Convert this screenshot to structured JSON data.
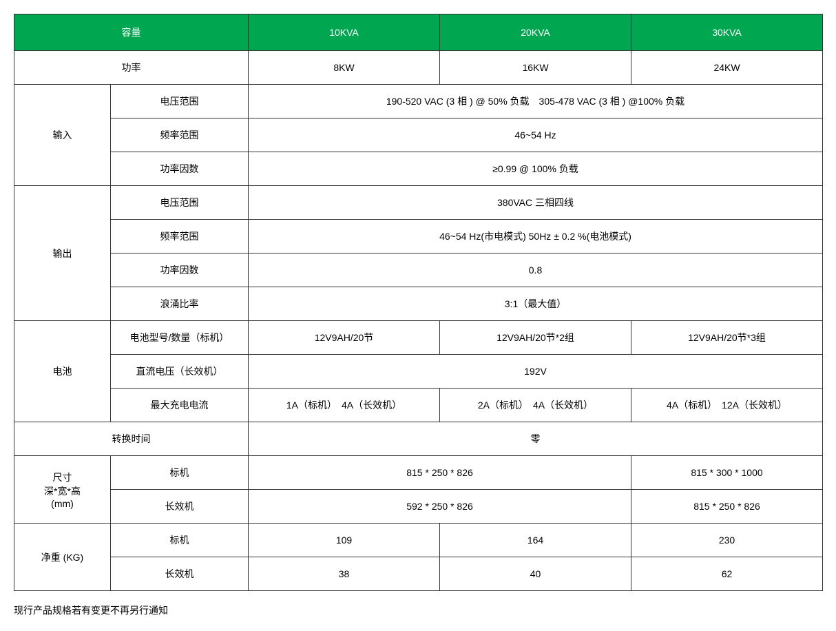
{
  "table": {
    "header_bg": "#00a650",
    "header_fg": "#ffffff",
    "border_color": "#333333",
    "text_color": "#000000",
    "columns": {
      "capacity_header": "容量",
      "model1": "10KVA",
      "model2": "20KVA",
      "model3": "30KVA"
    },
    "power": {
      "label": "功率",
      "v1": "8KW",
      "v2": "16KW",
      "v3": "24KW"
    },
    "input": {
      "label": "输入",
      "voltage_range_label": "电压范围",
      "voltage_range_value": "190-520 VAC (3 相 ) @ 50% 负载　305-478 VAC (3 相 ) @100% 负载",
      "freq_range_label": "频率范围",
      "freq_range_value": "46~54 Hz",
      "power_factor_label": "功率因数",
      "power_factor_value": "≥0.99 @ 100% 负载"
    },
    "output": {
      "label": "输出",
      "voltage_range_label": "电压范围",
      "voltage_range_value": "380VAC 三相四线",
      "freq_range_label": "频率范围",
      "freq_range_value": "46~54 Hz(市电模式)  50Hz ± 0.2 %(电池模式)",
      "power_factor_label": "功率因数",
      "power_factor_value": "0.8",
      "surge_ratio_label": "浪涌比率",
      "surge_ratio_value": "3:1（最大值）"
    },
    "battery": {
      "label": "电池",
      "model_qty_label": "电池型号/数量（标机）",
      "model_qty_v1": "12V9AH/20节",
      "model_qty_v2": "12V9AH/20节*2组",
      "model_qty_v3": "12V9AH/20节*3组",
      "dc_voltage_label": "直流电压（长效机）",
      "dc_voltage_value": "192V",
      "max_charge_label": "最大充电电流",
      "max_charge_v1": "1A（标机）　4A（长效机）",
      "max_charge_v2": "2A（标机）　4A（长效机）",
      "max_charge_v3": "4A（标机）　12A（长效机）"
    },
    "transfer_time": {
      "label": "转换时间",
      "value": "零"
    },
    "dimensions": {
      "label_line1": "尺寸",
      "label_line2": "深*宽*高",
      "label_line3": "(mm)",
      "std_label": "标机",
      "std_v12": "815 * 250 * 826",
      "std_v3": "815 * 300 * 1000",
      "long_label": "长效机",
      "long_v12": "592 * 250 * 826",
      "long_v3": "815 * 250 * 826"
    },
    "net_weight": {
      "label": "净重 (KG)",
      "std_label": "标机",
      "std_v1": "109",
      "std_v2": "164",
      "std_v3": "230",
      "long_label": "长效机",
      "long_v1": "38",
      "long_v2": "40",
      "long_v3": "62"
    }
  },
  "footnote": "现行产品规格若有变更不再另行通知"
}
